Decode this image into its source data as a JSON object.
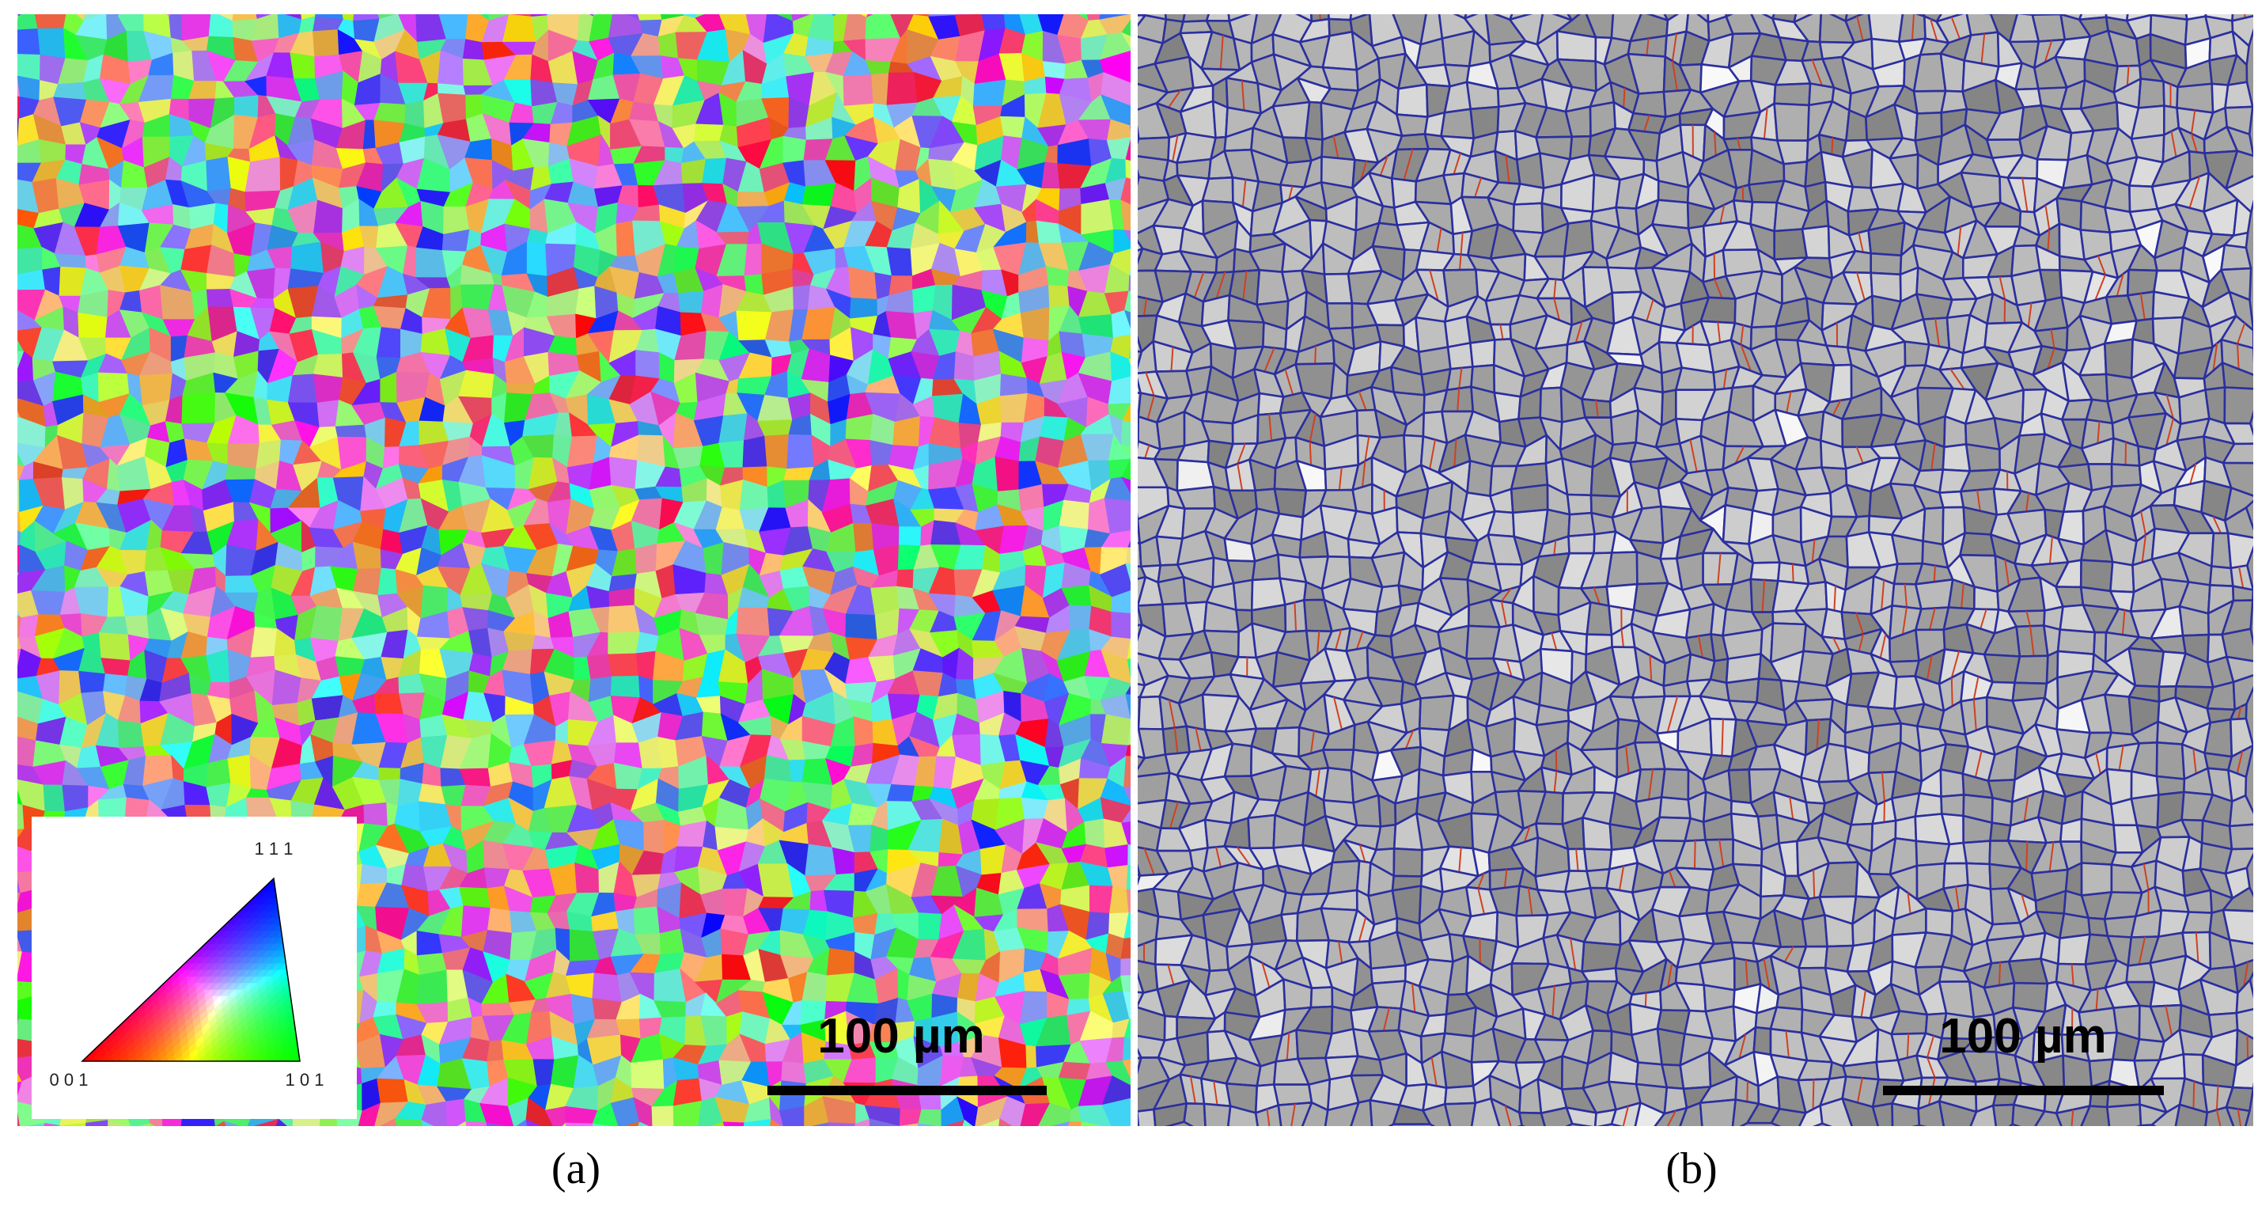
{
  "panels": [
    {
      "label": "(a)",
      "scale_bar": "100 µm",
      "legend": {
        "origin": "0 0 1",
        "x_end": "1 0 1",
        "top": "1 1 1"
      }
    },
    {
      "label": "(b)",
      "scale_bar": "100 µm"
    }
  ]
}
